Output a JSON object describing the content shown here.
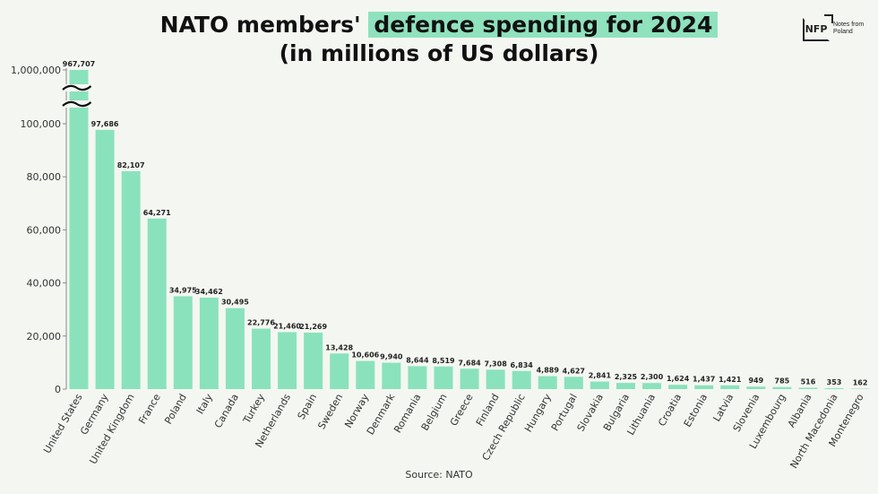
{
  "title": {
    "line1_prefix": "NATO members'",
    "line1_highlight": "defence spending for 2024",
    "line2": "(in millions of US dollars)"
  },
  "logo": {
    "mark": "NFP",
    "line1": "Notes from",
    "line2": "Poland"
  },
  "source": "Source: NATO",
  "colors": {
    "bar": "#8ae2bc",
    "background": "#f4f7f1",
    "highlight": "#8fe2bd"
  },
  "chart_data": {
    "type": "bar",
    "title": "NATO members' defence spending for 2024 (in millions of US dollars)",
    "categories": [
      "United States",
      "Germany",
      "United Kingdom",
      "France",
      "Poland",
      "Italy",
      "Canada",
      "Turkey",
      "Netherlands",
      "Spain",
      "Sweden",
      "Norway",
      "Denmark",
      "Romania",
      "Belgium",
      "Greece",
      "Finland",
      "Czech Republic",
      "Hungary",
      "Portugal",
      "Slovakia",
      "Bulgaria",
      "Lithuania",
      "Croatia",
      "Estonia",
      "Latvia",
      "Slovenia",
      "Luxembourg",
      "Albania",
      "North Macedonia",
      "Montenegro"
    ],
    "values": [
      967707,
      97686,
      82107,
      64271,
      34975,
      34462,
      30495,
      22776,
      21460,
      21269,
      13428,
      10606,
      9940,
      8644,
      8519,
      7684,
      7308,
      6834,
      4889,
      4627,
      2841,
      2325,
      2300,
      1624,
      1437,
      1421,
      949,
      785,
      516,
      353,
      162
    ],
    "value_labels": [
      "967,707",
      "97,686",
      "82,107",
      "64,271",
      "34,975",
      "34,462",
      "30,495",
      "22,776",
      "21,460",
      "21,269",
      "13,428",
      "10,606",
      "9,940",
      "8,644",
      "8,519",
      "7,684",
      "7,308",
      "6,834",
      "4,889",
      "4,627",
      "2,841",
      "2,325",
      "2,300",
      "1,624",
      "1,437",
      "1,421",
      "949",
      "785",
      "516",
      "353",
      "162"
    ],
    "ylim": [
      0,
      1000000
    ],
    "y_axis_break": [
      100000,
      1000000
    ],
    "y_ticks": [
      0,
      20000,
      40000,
      60000,
      80000,
      100000,
      1000000
    ],
    "y_tick_labels": [
      "0",
      "20,000",
      "40,000",
      "60,000",
      "80,000",
      "100,000",
      "1,000,000"
    ],
    "grid": false,
    "legend": "none"
  }
}
